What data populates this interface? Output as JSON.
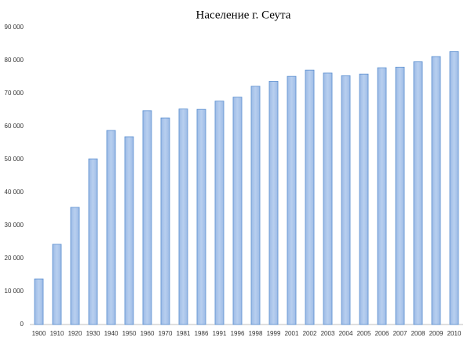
{
  "chart_data": {
    "type": "bar",
    "title": "Население г. Сеута",
    "categories": [
      "1900",
      "1910",
      "1920",
      "1930",
      "1940",
      "1950",
      "1960",
      "1970",
      "1981",
      "1986",
      "1991",
      "1996",
      "1998",
      "1999",
      "2001",
      "2002",
      "2003",
      "2004",
      "2005",
      "2006",
      "2007",
      "2008",
      "2009",
      "2010"
    ],
    "values": [
      13800,
      24300,
      35500,
      50200,
      58800,
      56900,
      64800,
      62600,
      65300,
      65200,
      67700,
      68900,
      72200,
      73700,
      75200,
      77100,
      76200,
      75400,
      75900,
      77800,
      78000,
      79600,
      81200,
      82700
    ],
    "color": "#a9c4eb",
    "ylim": [
      0,
      90000
    ],
    "yticks": [
      0,
      {
        "value": 10000,
        "label": "10 000"
      },
      {
        "value": 20000,
        "label": "20 000"
      },
      {
        "value": 30000,
        "label": "30 000"
      },
      {
        "value": 40000,
        "label": "40 000"
      },
      {
        "value": 50000,
        "label": "50 000"
      },
      {
        "value": 60000,
        "label": "60 000"
      },
      {
        "value": 70000,
        "label": "70 000"
      },
      {
        "value": 80000,
        "label": "80 000"
      },
      {
        "value": 90000,
        "label": "90 000"
      }
    ],
    "grid": false
  }
}
